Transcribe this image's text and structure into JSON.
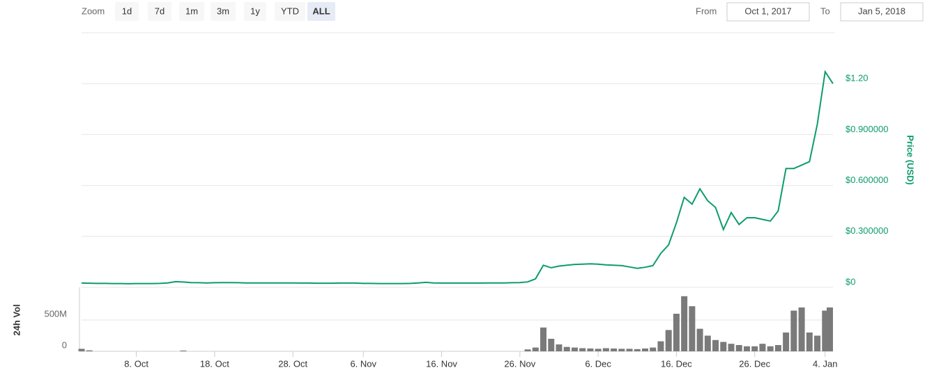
{
  "controls": {
    "zoom_label": "Zoom",
    "buttons": [
      "1d",
      "7d",
      "1m",
      "3m",
      "1y",
      "YTD",
      "ALL"
    ],
    "active": "ALL",
    "from_label": "From",
    "from": "Oct 1, 2017",
    "to_label": "To",
    "to": "Jan 5, 2018"
  },
  "chart_data": [
    {
      "type": "line",
      "y_label": "Price (USD)",
      "color": "#0d9b6e",
      "grid": true,
      "xlim": [
        "2017-10-01",
        "2018-01-05"
      ],
      "ylim": [
        0,
        1.5
      ],
      "yticks": [
        {
          "value": 0,
          "label": "$0"
        },
        {
          "value": 0.3,
          "label": "$0.300000"
        },
        {
          "value": 0.6,
          "label": "$0.600000"
        },
        {
          "value": 0.9,
          "label": "$0.900000"
        },
        {
          "value": 1.2,
          "label": "$1.20"
        }
      ],
      "x": [
        "2017-10-01",
        "2017-10-02",
        "2017-10-03",
        "2017-10-04",
        "2017-10-05",
        "2017-10-06",
        "2017-10-07",
        "2017-10-08",
        "2017-10-09",
        "2017-10-10",
        "2017-10-11",
        "2017-10-12",
        "2017-10-13",
        "2017-10-14",
        "2017-10-15",
        "2017-10-16",
        "2017-10-17",
        "2017-10-18",
        "2017-10-19",
        "2017-10-20",
        "2017-10-21",
        "2017-10-22",
        "2017-10-23",
        "2017-10-24",
        "2017-10-25",
        "2017-10-26",
        "2017-10-27",
        "2017-10-28",
        "2017-10-29",
        "2017-10-30",
        "2017-10-31",
        "2017-11-01",
        "2017-11-02",
        "2017-11-03",
        "2017-11-04",
        "2017-11-05",
        "2017-11-06",
        "2017-11-07",
        "2017-11-08",
        "2017-11-09",
        "2017-11-10",
        "2017-11-11",
        "2017-11-12",
        "2017-11-13",
        "2017-11-14",
        "2017-11-15",
        "2017-11-16",
        "2017-11-17",
        "2017-11-18",
        "2017-11-19",
        "2017-11-20",
        "2017-11-21",
        "2017-11-22",
        "2017-11-23",
        "2017-11-24",
        "2017-11-25",
        "2017-11-26",
        "2017-11-27",
        "2017-11-28",
        "2017-11-29",
        "2017-11-30",
        "2017-12-01",
        "2017-12-02",
        "2017-12-03",
        "2017-12-04",
        "2017-12-05",
        "2017-12-06",
        "2017-12-07",
        "2017-12-08",
        "2017-12-09",
        "2017-12-10",
        "2017-12-11",
        "2017-12-12",
        "2017-12-13",
        "2017-12-14",
        "2017-12-15",
        "2017-12-16",
        "2017-12-17",
        "2017-12-18",
        "2017-12-19",
        "2017-12-20",
        "2017-12-21",
        "2017-12-22",
        "2017-12-23",
        "2017-12-24",
        "2017-12-25",
        "2017-12-26",
        "2017-12-27",
        "2017-12-28",
        "2017-12-29",
        "2017-12-30",
        "2017-12-31",
        "2018-01-01",
        "2018-01-02",
        "2018-01-03",
        "2018-01-04",
        "2018-01-05"
      ],
      "values": [
        0.025,
        0.024,
        0.023,
        0.023,
        0.022,
        0.022,
        0.021,
        0.022,
        0.022,
        0.022,
        0.023,
        0.026,
        0.033,
        0.031,
        0.028,
        0.027,
        0.026,
        0.027,
        0.028,
        0.028,
        0.027,
        0.026,
        0.026,
        0.026,
        0.026,
        0.026,
        0.026,
        0.026,
        0.025,
        0.025,
        0.024,
        0.024,
        0.024,
        0.025,
        0.025,
        0.025,
        0.023,
        0.023,
        0.022,
        0.022,
        0.022,
        0.022,
        0.023,
        0.026,
        0.029,
        0.026,
        0.025,
        0.025,
        0.025,
        0.025,
        0.025,
        0.025,
        0.026,
        0.026,
        0.026,
        0.027,
        0.028,
        0.032,
        0.05,
        0.13,
        0.115,
        0.125,
        0.13,
        0.135,
        0.136,
        0.138,
        0.136,
        0.132,
        0.13,
        0.128,
        0.12,
        0.112,
        0.118,
        0.128,
        0.2,
        0.25,
        0.38,
        0.53,
        0.49,
        0.58,
        0.51,
        0.47,
        0.34,
        0.44,
        0.37,
        0.41,
        0.41,
        0.4,
        0.39,
        0.45,
        0.7,
        0.7,
        0.72,
        0.74,
        0.96,
        1.27,
        1.2
      ]
    },
    {
      "type": "bar",
      "y_label": "24h Vol",
      "color": "#7a7a7a",
      "grid": true,
      "xlim": [
        "2017-10-01",
        "2018-01-05"
      ],
      "ylim": [
        0,
        1000000000
      ],
      "yticks": [
        0,
        {
          "value": 500000000,
          "label": "500M"
        }
      ],
      "xticks": [
        {
          "value": "2017-10-08",
          "label": "8. Oct"
        },
        {
          "value": "2017-10-18",
          "label": "18. Oct"
        },
        {
          "value": "2017-10-28",
          "label": "28. Oct"
        },
        {
          "value": "2017-11-06",
          "label": "6. Nov"
        },
        {
          "value": "2017-11-16",
          "label": "16. Nov"
        },
        {
          "value": "2017-11-26",
          "label": "26. Nov"
        },
        {
          "value": "2017-12-06",
          "label": "6. Dec"
        },
        {
          "value": "2017-12-16",
          "label": "16. Dec"
        },
        {
          "value": "2017-12-26",
          "label": "26. Dec"
        },
        {
          "value": "2018-01-04",
          "label": "4. Jan"
        }
      ],
      "x": [
        "2017-10-01",
        "2017-10-02",
        "2017-10-03",
        "2017-10-04",
        "2017-10-05",
        "2017-10-06",
        "2017-10-07",
        "2017-10-08",
        "2017-10-09",
        "2017-10-10",
        "2017-10-11",
        "2017-10-12",
        "2017-10-13",
        "2017-10-14",
        "2017-10-15",
        "2017-10-16",
        "2017-10-17",
        "2017-10-18",
        "2017-10-19",
        "2017-10-20",
        "2017-10-21",
        "2017-10-22",
        "2017-10-23",
        "2017-10-24",
        "2017-10-25",
        "2017-10-26",
        "2017-10-27",
        "2017-10-28",
        "2017-10-29",
        "2017-10-30",
        "2017-10-31",
        "2017-11-01",
        "2017-11-02",
        "2017-11-03",
        "2017-11-04",
        "2017-11-05",
        "2017-11-06",
        "2017-11-07",
        "2017-11-08",
        "2017-11-09",
        "2017-11-10",
        "2017-11-11",
        "2017-11-12",
        "2017-11-13",
        "2017-11-14",
        "2017-11-15",
        "2017-11-16",
        "2017-11-17",
        "2017-11-18",
        "2017-11-19",
        "2017-11-20",
        "2017-11-21",
        "2017-11-22",
        "2017-11-23",
        "2017-11-24",
        "2017-11-25",
        "2017-11-26",
        "2017-11-27",
        "2017-11-28",
        "2017-11-29",
        "2017-11-30",
        "2017-12-01",
        "2017-12-02",
        "2017-12-03",
        "2017-12-04",
        "2017-12-05",
        "2017-12-06",
        "2017-12-07",
        "2017-12-08",
        "2017-12-09",
        "2017-12-10",
        "2017-12-11",
        "2017-12-12",
        "2017-12-13",
        "2017-12-14",
        "2017-12-15",
        "2017-12-16",
        "2017-12-17",
        "2017-12-18",
        "2017-12-19",
        "2017-12-20",
        "2017-12-21",
        "2017-12-22",
        "2017-12-23",
        "2017-12-24",
        "2017-12-25",
        "2017-12-26",
        "2017-12-27",
        "2017-12-28",
        "2017-12-29",
        "2017-12-30",
        "2017-12-31",
        "2018-01-01",
        "2018-01-02",
        "2018-01-03",
        "2018-01-04",
        "2018-01-05"
      ],
      "values": [
        40000000,
        15000000,
        0,
        0,
        0,
        0,
        0,
        0,
        0,
        0,
        0,
        0,
        0,
        12000000,
        0,
        0,
        0,
        0,
        0,
        0,
        0,
        0,
        0,
        0,
        0,
        0,
        0,
        0,
        0,
        0,
        0,
        0,
        0,
        0,
        0,
        0,
        0,
        0,
        0,
        0,
        0,
        0,
        0,
        0,
        0,
        0,
        0,
        0,
        0,
        0,
        0,
        0,
        0,
        0,
        0,
        0,
        0,
        30000000,
        60000000,
        380000000,
        200000000,
        110000000,
        70000000,
        60000000,
        50000000,
        45000000,
        40000000,
        50000000,
        45000000,
        40000000,
        40000000,
        35000000,
        45000000,
        60000000,
        160000000,
        340000000,
        600000000,
        880000000,
        720000000,
        360000000,
        250000000,
        180000000,
        150000000,
        120000000,
        100000000,
        80000000,
        80000000,
        120000000,
        80000000,
        100000000,
        300000000,
        650000000,
        700000000,
        300000000,
        250000000,
        650000000,
        700000000
      ]
    }
  ]
}
